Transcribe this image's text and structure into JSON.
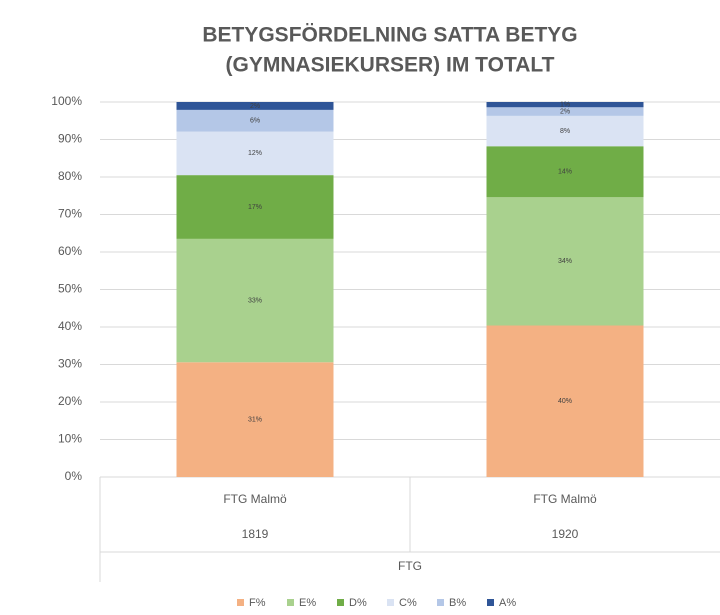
{
  "chart_data": {
    "type": "stacked_bar",
    "title": [
      "BETYGSFÖRDELNING SATTA BETYG",
      "(GYMNASIEKURSER) IM TOTALT"
    ],
    "categories": [
      "FTG Malmö",
      "FTG Malmö"
    ],
    "subcategories": [
      "1819",
      "1920"
    ],
    "group": "FTG",
    "series": [
      {
        "name": "F%",
        "color": "#f4b183",
        "values": [
          30.6,
          40.4
        ],
        "value_labels": [
          "31%",
          "40%"
        ]
      },
      {
        "name": "E%",
        "color": "#a9d18e",
        "values": [
          32.9,
          34.2
        ],
        "value_labels": [
          "33%",
          "34%"
        ]
      },
      {
        "name": "D%",
        "color": "#70ad47",
        "values": [
          17,
          13.6
        ],
        "value_labels": [
          "17%",
          "14%"
        ]
      },
      {
        "name": "C%",
        "color": "#dae3f3",
        "values": [
          11.6,
          8.1
        ],
        "value_labels": [
          "12%",
          "8%"
        ]
      },
      {
        "name": "B%",
        "color": "#b4c7e7",
        "values": [
          5.8,
          2.3
        ],
        "value_labels": [
          "6%",
          "2%"
        ]
      },
      {
        "name": "A%",
        "color": "#2f5597",
        "values": [
          2.1,
          1.4
        ],
        "value_labels": [
          "2%",
          "1%"
        ]
      }
    ],
    "ylim": [
      0,
      100
    ],
    "yticks": [
      {
        "value": 0,
        "label": "0%"
      },
      {
        "value": 10,
        "label": "10%"
      },
      {
        "value": 20,
        "label": "20%"
      },
      {
        "value": 30,
        "label": "30%"
      },
      {
        "value": 40,
        "label": "40%"
      },
      {
        "value": 50,
        "label": "50%"
      },
      {
        "value": 60,
        "label": "60%"
      },
      {
        "value": 70,
        "label": "70%"
      },
      {
        "value": 80,
        "label": "80%"
      },
      {
        "value": 90,
        "label": "90%"
      },
      {
        "value": 100,
        "label": "100%"
      }
    ],
    "grid": true
  }
}
